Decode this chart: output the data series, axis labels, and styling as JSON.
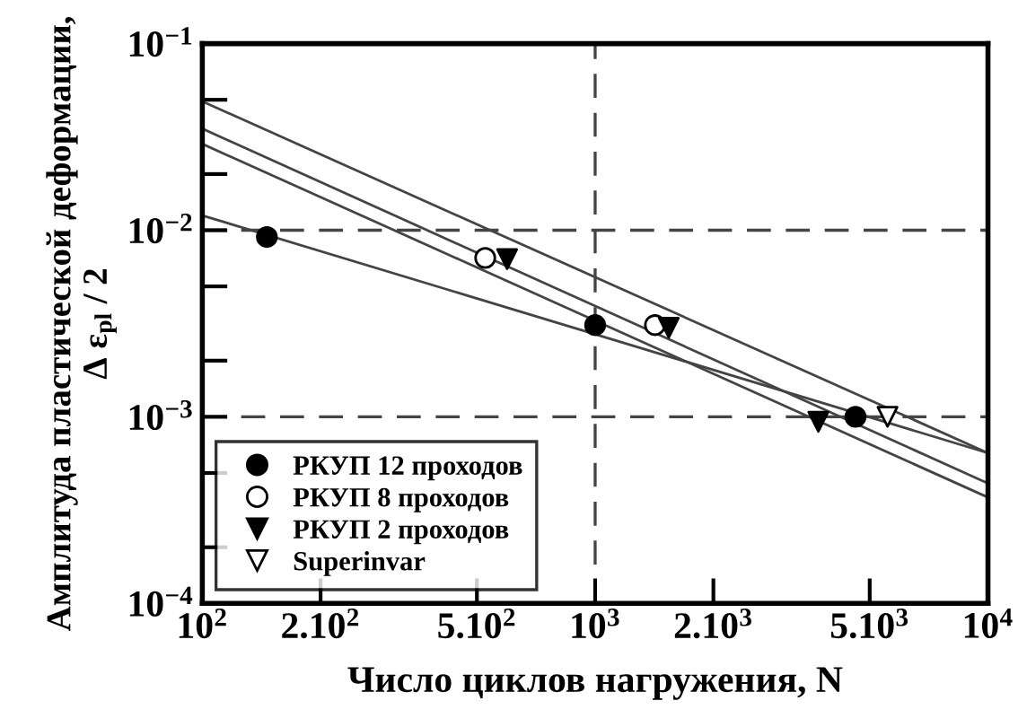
{
  "chart_data": {
    "type": "scatter",
    "xlabel": "Число циклов нагружения, N",
    "ylabel": "Амплитуда пластической деформации,\nΔ ε$_{pl}$ / 2",
    "log": "xy",
    "xlim": [
      100,
      10000
    ],
    "ylim": [
      0.0001,
      0.1
    ],
    "xticks": [
      {
        "value": 100,
        "label": "10$^{2}$"
      },
      {
        "value": 200,
        "label": "2.10$^{2}$"
      },
      {
        "value": 500,
        "label": "5.10$^{2}$"
      },
      {
        "value": 1000,
        "label": "10$^{3}$"
      },
      {
        "value": 2000,
        "label": "2.10$^{3}$"
      },
      {
        "value": 5000,
        "label": "5.10$^{3}$"
      },
      {
        "value": 10000,
        "label": "10$^{4}$"
      }
    ],
    "yticks": [
      {
        "value": 0.0001,
        "label": "10$^{−4}$"
      },
      {
        "value": 0.0002,
        "label": null
      },
      {
        "value": 0.0005,
        "label": null
      },
      {
        "value": 0.001,
        "label": "10$^{−3}$"
      },
      {
        "value": 0.002,
        "label": null
      },
      {
        "value": 0.005,
        "label": null
      },
      {
        "value": 0.01,
        "label": "10$^{−2}$"
      },
      {
        "value": 0.02,
        "label": null
      },
      {
        "value": 0.05,
        "label": null
      },
      {
        "value": 0.1,
        "label": "10$^{−1}$"
      }
    ],
    "grid": false,
    "legend": "bottom left",
    "series": [
      {
        "name": "РКУП 12 проходов",
        "color": "#000000",
        "marker": "circle",
        "x": [
          146,
          1000,
          4600
        ],
        "values": [
          0.0092,
          0.0031,
          0.001
        ]
      },
      {
        "name": "РКУП 8 проходов",
        "color": "#ffffff",
        "marker": "circle",
        "x": [
          525,
          1420
        ],
        "values": [
          0.0071,
          0.0031
        ]
      },
      {
        "name": "РКУП 2 проходов",
        "color": "#000000",
        "marker": "triangle",
        "x": [
          597,
          1540,
          3700
        ],
        "values": [
          0.007,
          0.003,
          0.00094
        ]
      },
      {
        "name": "Superinvar",
        "color": "#ffffff",
        "marker": "triangle",
        "x": [
          5550
        ],
        "values": [
          0.001
        ]
      },
      {
        "type": "line",
        "color": "#444444",
        "x": [
          100,
          10000
        ],
        "values": [
          0.012,
          0.00064
        ]
      },
      {
        "type": "line",
        "color": "#444444",
        "x": [
          100,
          10000
        ],
        "values": [
          0.049,
          0.00064
        ]
      },
      {
        "type": "line",
        "color": "#444444",
        "x": [
          100,
          10000
        ],
        "values": [
          0.035,
          0.00044
        ]
      },
      {
        "type": "line",
        "color": "#444444",
        "x": [
          100,
          10000
        ],
        "values": [
          0.029,
          0.00037
        ]
      }
    ],
    "ref_lines": [
      {
        "axis": "y",
        "value": 0.01,
        "line_style": "dashed",
        "color": "#444444"
      },
      {
        "axis": "y",
        "value": 0.001,
        "line_style": "dashed",
        "color": "#444444"
      },
      {
        "axis": "x",
        "value": 1000,
        "line_style": "dashed",
        "color": "#444444"
      }
    ]
  }
}
